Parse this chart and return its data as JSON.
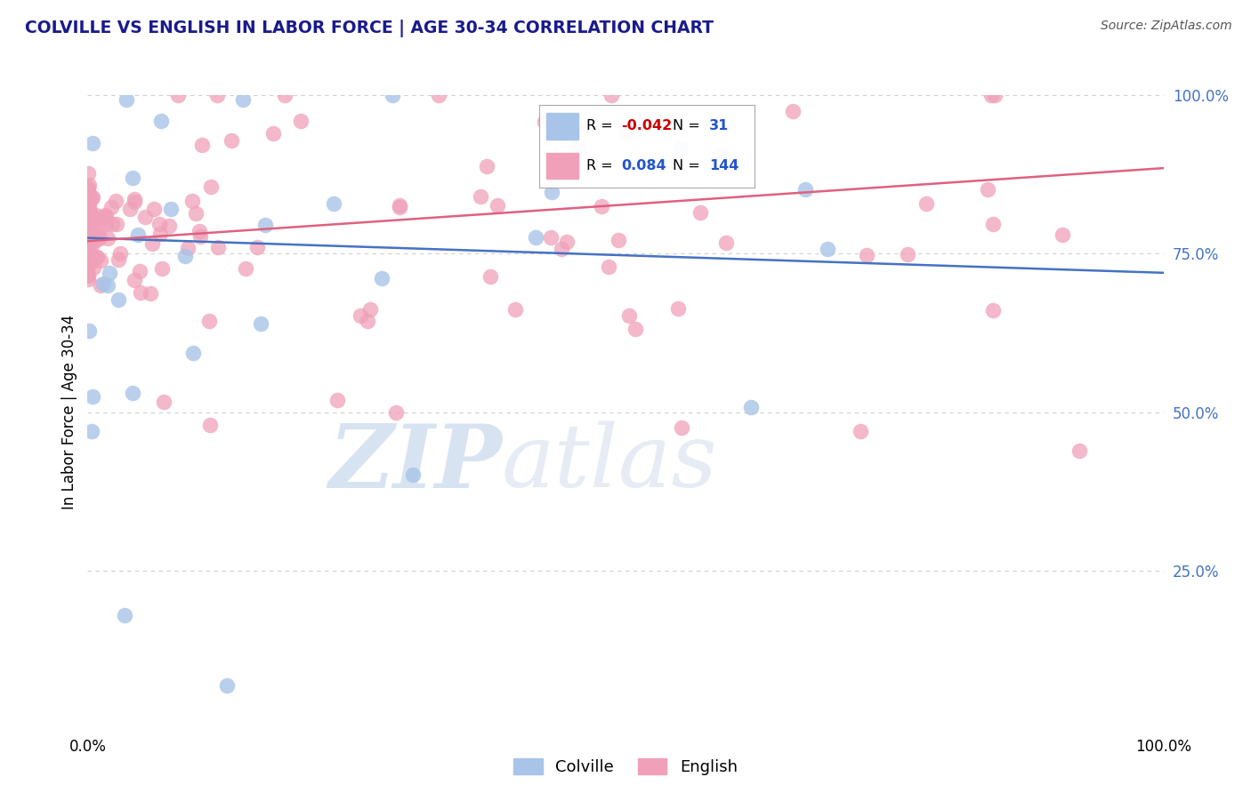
{
  "title": "COLVILLE VS ENGLISH IN LABOR FORCE | AGE 30-34 CORRELATION CHART",
  "source": "Source: ZipAtlas.com",
  "ylabel": "In Labor Force | Age 30-34",
  "legend_blue_r": "-0.042",
  "legend_blue_n": "31",
  "legend_pink_r": "0.084",
  "legend_pink_n": "144",
  "blue_color": "#a8c4e8",
  "pink_color": "#f0a0b8",
  "blue_line_color": "#4472c4",
  "pink_line_color": "#e06080",
  "watermark": "ZIPatlas",
  "watermark_blue": "#c0d0f0",
  "watermark_gray": "#b0c0d8",
  "background_color": "#ffffff",
  "grid_color": "#d0d0d0",
  "title_color": "#1a1a8c",
  "ytick_color": "#4472c4",
  "source_color": "#555555",
  "blue_intercept": 0.775,
  "blue_slope": -0.055,
  "pink_intercept": 0.77,
  "pink_slope": 0.115
}
